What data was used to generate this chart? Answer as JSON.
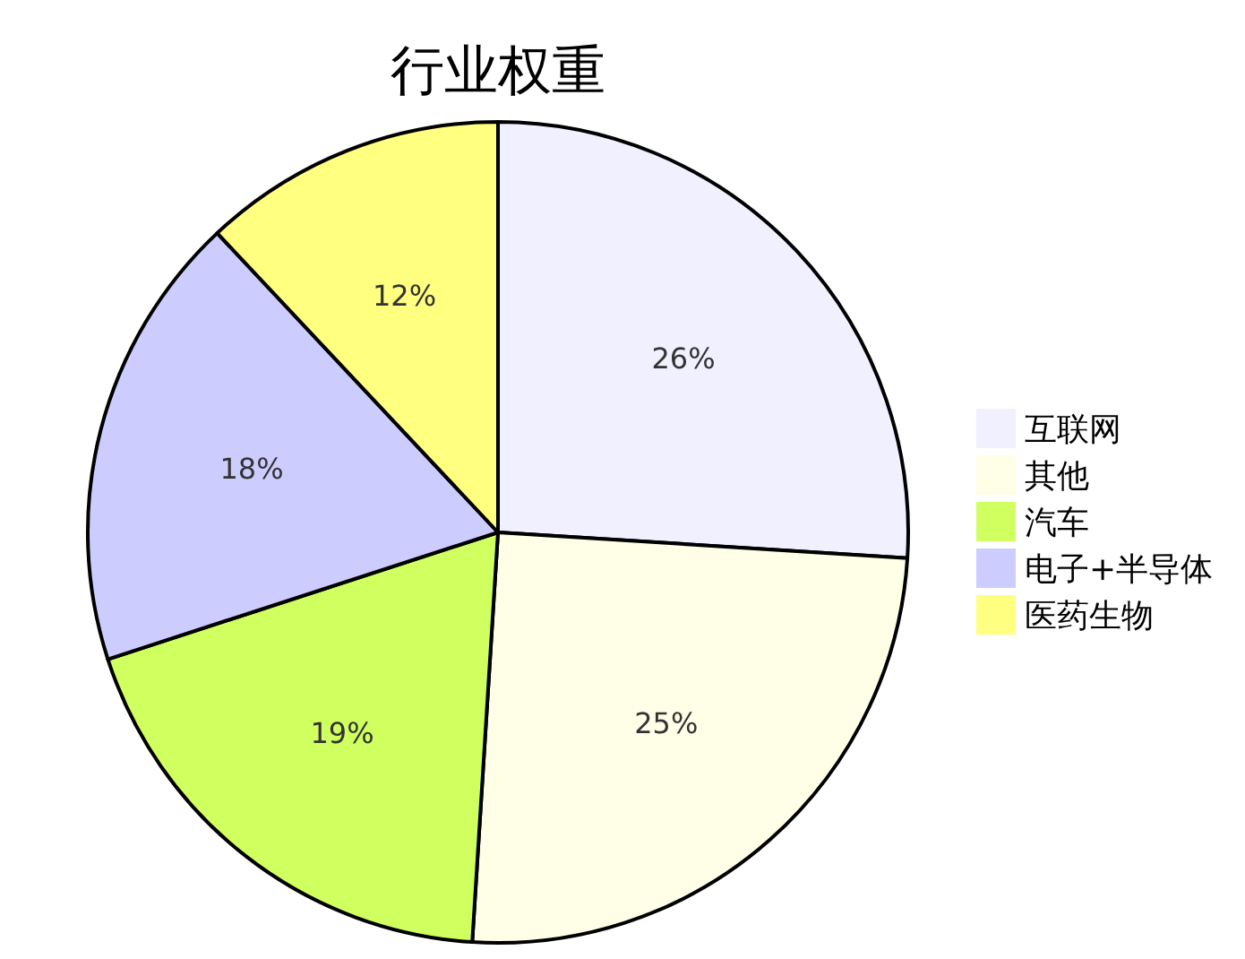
{
  "chart_data": {
    "type": "pie",
    "title": "行业权重",
    "categories": [
      "互联网",
      "其他",
      "汽车",
      "电子+半导体",
      "医药生物"
    ],
    "values": [
      26,
      25,
      19,
      18,
      12
    ],
    "colors": [
      "#f0f0ff",
      "#ffffe8",
      "#d0ff60",
      "#ccccff",
      "#ffff80"
    ],
    "value_labels": [
      "26%",
      "25%",
      "19%",
      "18%",
      "12%"
    ],
    "legend": "right"
  }
}
